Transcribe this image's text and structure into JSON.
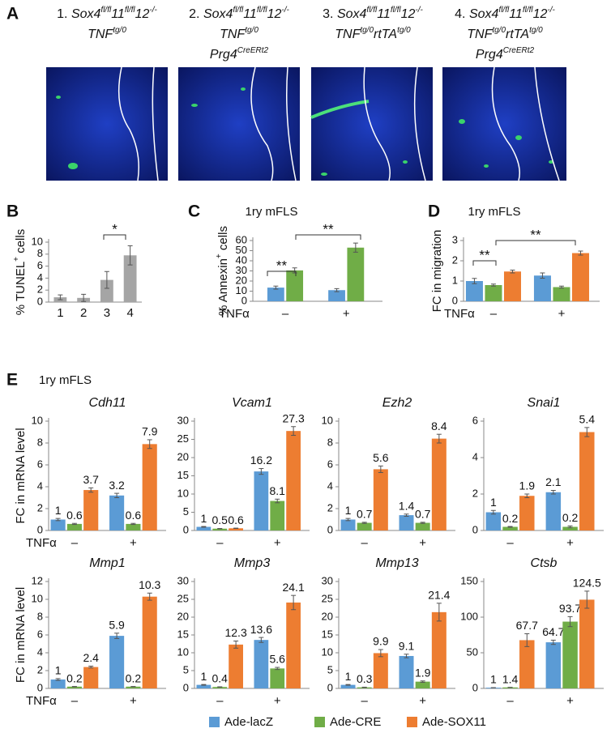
{
  "panel_labels": [
    "A",
    "B",
    "C",
    "D",
    "E"
  ],
  "panel_a": {
    "titles": [
      {
        "number": "1.",
        "lines": [
          [
            [
              "Sox4",
              "fl/fl"
            ],
            [
              "11",
              "fl/fl"
            ],
            [
              "12",
              "-/-"
            ]
          ],
          [
            [
              "TNF",
              "tg/0"
            ]
          ]
        ]
      },
      {
        "number": "2.",
        "lines": [
          [
            [
              "Sox4",
              "fl/fl"
            ],
            [
              "11",
              "fl/fl"
            ],
            [
              "12",
              "-/-"
            ]
          ],
          [
            [
              "TNF",
              "tg/0"
            ]
          ],
          [
            [
              "Prg4",
              "CreERt2"
            ]
          ]
        ]
      },
      {
        "number": "3.",
        "lines": [
          [
            [
              "Sox4",
              "fl/fl"
            ],
            [
              "11",
              "fl/fl"
            ],
            [
              "12",
              "-/-"
            ]
          ],
          [
            [
              "TNF",
              "tg/0"
            ],
            [
              "rtTA",
              "tg/0"
            ]
          ]
        ]
      },
      {
        "number": "4.",
        "lines": [
          [
            [
              "Sox4",
              "fl/fl"
            ],
            [
              "11",
              "fl/fl"
            ],
            [
              "12",
              "-/-"
            ]
          ],
          [
            [
              "TNF",
              "tg/0"
            ],
            [
              "rtTA",
              "tg/0"
            ]
          ],
          [
            [
              "Prg4",
              "CreERt2"
            ]
          ]
        ]
      }
    ]
  },
  "panel_e_subtitle": "1ry mFLS",
  "legend": [
    {
      "name": "Ade-lacZ",
      "color": "#5b9bd5"
    },
    {
      "name": "Ade-CRE",
      "color": "#70ad47"
    },
    {
      "name": "Ade-SOX11",
      "color": "#ed7d31"
    }
  ],
  "chart_data": [
    {
      "type": "bar",
      "y_label": [
        {
          "text": "% TUNEL"
        },
        {
          "text": "+",
          "sup": true
        },
        {
          "text": " cells"
        }
      ],
      "categories": [
        "1",
        "2",
        "3",
        "4"
      ],
      "values": [
        0.8,
        0.7,
        3.7,
        7.8
      ],
      "errors": [
        0.4,
        0.6,
        1.4,
        1.6
      ],
      "color": "#a5a5a5",
      "ylim": [
        0,
        10
      ],
      "yticks": [
        0,
        2,
        4,
        6,
        8,
        10
      ],
      "annotations": [
        {
          "text": "*"
        }
      ]
    },
    {
      "type": "bar",
      "title": "1ry mFLS",
      "y_label": [
        {
          "text": "% Annexin"
        },
        {
          "text": "+",
          "sup": true
        },
        {
          "text": " cells"
        }
      ],
      "x_label": "TNFα",
      "categories": [
        "–",
        "+"
      ],
      "series": [
        {
          "color": "#5b9bd5",
          "values": [
            13.5,
            11
          ],
          "errors": [
            1.5,
            1.5
          ]
        },
        {
          "color": "#70ad47",
          "values": [
            30.5,
            53
          ],
          "errors": [
            2.5,
            4.5
          ]
        }
      ],
      "ylim": [
        0,
        60
      ],
      "yticks": [
        0,
        10,
        20,
        30,
        40,
        50,
        60
      ],
      "annotations": [
        {
          "text": "**"
        },
        {
          "text": "**"
        }
      ]
    },
    {
      "type": "bar",
      "title": "1ry mFLS",
      "y_label": "FC in migration",
      "x_label": "TNFα",
      "categories": [
        "–",
        "+"
      ],
      "series": [
        {
          "color": "#5b9bd5",
          "values": [
            1.0,
            1.27
          ],
          "errors": [
            0.13,
            0.13
          ]
        },
        {
          "color": "#70ad47",
          "values": [
            0.8,
            0.7
          ],
          "errors": [
            0.05,
            0.05
          ]
        },
        {
          "color": "#ed7d31",
          "values": [
            1.47,
            2.38
          ],
          "errors": [
            0.07,
            0.1
          ]
        }
      ],
      "ylim": [
        0,
        3
      ],
      "yticks": [
        0,
        1,
        2,
        3
      ],
      "annotations": [
        {
          "text": "**"
        },
        {
          "text": "**"
        }
      ]
    },
    {
      "type": "bar",
      "title": "Cdh11",
      "y_label": "FC in mRNA level",
      "x_label": "TNFα",
      "data_labels": true,
      "categories": [
        "–",
        "+"
      ],
      "series": [
        {
          "color": "#5b9bd5",
          "values": [
            1,
            3.2
          ],
          "errors": [
            0.1,
            0.2
          ]
        },
        {
          "color": "#70ad47",
          "values": [
            0.6,
            0.6
          ],
          "errors": [
            0.05,
            0.05
          ]
        },
        {
          "color": "#ed7d31",
          "values": [
            3.7,
            7.9
          ],
          "errors": [
            0.2,
            0.4
          ]
        }
      ],
      "ylim": [
        0,
        10
      ],
      "yticks": [
        0,
        2,
        4,
        6,
        8,
        10
      ]
    },
    {
      "type": "bar",
      "title": "Vcam1",
      "data_labels": true,
      "categories": [
        "–",
        "+"
      ],
      "series": [
        {
          "color": "#5b9bd5",
          "values": [
            1,
            16.2
          ],
          "errors": [
            0.1,
            0.8
          ]
        },
        {
          "color": "#70ad47",
          "values": [
            0.5,
            8.1
          ],
          "errors": [
            0.05,
            0.5
          ]
        },
        {
          "color": "#ed7d31",
          "values": [
            0.6,
            27.3
          ],
          "errors": [
            0.05,
            1.2
          ]
        }
      ],
      "ylim": [
        0,
        30
      ],
      "yticks": [
        0,
        5,
        10,
        15,
        20,
        25,
        30
      ]
    },
    {
      "type": "bar",
      "title": "Ezh2",
      "data_labels": true,
      "categories": [
        "–",
        "+"
      ],
      "series": [
        {
          "color": "#5b9bd5",
          "values": [
            1,
            1.4
          ],
          "errors": [
            0.1,
            0.1
          ]
        },
        {
          "color": "#70ad47",
          "values": [
            0.7,
            0.7
          ],
          "errors": [
            0.05,
            0.05
          ]
        },
        {
          "color": "#ed7d31",
          "values": [
            5.6,
            8.4
          ],
          "errors": [
            0.3,
            0.4
          ]
        }
      ],
      "ylim": [
        0,
        10
      ],
      "yticks": [
        0,
        2,
        4,
        6,
        8,
        10
      ]
    },
    {
      "type": "bar",
      "title": "Snai1",
      "data_labels": true,
      "categories": [
        "–",
        "+"
      ],
      "series": [
        {
          "color": "#5b9bd5",
          "values": [
            1,
            2.1
          ],
          "errors": [
            0.1,
            0.1
          ]
        },
        {
          "color": "#70ad47",
          "values": [
            0.2,
            0.2
          ],
          "errors": [
            0.02,
            0.05
          ]
        },
        {
          "color": "#ed7d31",
          "values": [
            1.9,
            5.4
          ],
          "errors": [
            0.1,
            0.25
          ]
        }
      ],
      "ylim": [
        0,
        6
      ],
      "yticks": [
        0,
        2,
        4,
        6
      ]
    },
    {
      "type": "bar",
      "title": "Mmp1",
      "y_label": "FC in mRNA level",
      "x_label": "TNFα",
      "data_labels": true,
      "categories": [
        "–",
        "+"
      ],
      "series": [
        {
          "color": "#5b9bd5",
          "values": [
            1,
            5.9
          ],
          "errors": [
            0.1,
            0.3
          ]
        },
        {
          "color": "#70ad47",
          "values": [
            0.2,
            0.2
          ],
          "errors": [
            0.02,
            0.02
          ]
        },
        {
          "color": "#ed7d31",
          "values": [
            2.4,
            10.3
          ],
          "errors": [
            0.1,
            0.4
          ]
        }
      ],
      "ylim": [
        0,
        12
      ],
      "yticks": [
        0,
        2,
        4,
        6,
        8,
        10,
        12
      ]
    },
    {
      "type": "bar",
      "title": "Mmp3",
      "data_labels": true,
      "categories": [
        "–",
        "+"
      ],
      "series": [
        {
          "color": "#5b9bd5",
          "values": [
            1,
            13.6
          ],
          "errors": [
            0.1,
            0.7
          ]
        },
        {
          "color": "#70ad47",
          "values": [
            0.4,
            5.6
          ],
          "errors": [
            0.05,
            0.3
          ]
        },
        {
          "color": "#ed7d31",
          "values": [
            12.3,
            24.1
          ],
          "errors": [
            1,
            2
          ]
        }
      ],
      "ylim": [
        0,
        30
      ],
      "yticks": [
        0,
        5,
        10,
        15,
        20,
        25,
        30
      ]
    },
    {
      "type": "bar",
      "title": "Mmp13",
      "data_labels": true,
      "categories": [
        "–",
        "+"
      ],
      "series": [
        {
          "color": "#5b9bd5",
          "values": [
            1,
            9.1
          ],
          "errors": [
            0.1,
            0.5
          ]
        },
        {
          "color": "#70ad47",
          "values": [
            0.3,
            1.9
          ],
          "errors": [
            0.05,
            0.2
          ]
        },
        {
          "color": "#ed7d31",
          "values": [
            9.9,
            21.4
          ],
          "errors": [
            1,
            2.5
          ]
        }
      ],
      "ylim": [
        0,
        30
      ],
      "yticks": [
        0,
        5,
        10,
        15,
        20,
        25,
        30
      ]
    },
    {
      "type": "bar",
      "title": "Ctsb",
      "data_labels": true,
      "categories": [
        "–",
        "+"
      ],
      "series": [
        {
          "color": "#5b9bd5",
          "values": [
            1,
            64.7
          ],
          "errors": [
            0.1,
            3
          ]
        },
        {
          "color": "#70ad47",
          "values": [
            1.4,
            93.7
          ],
          "errors": [
            0.1,
            7
          ]
        },
        {
          "color": "#ed7d31",
          "values": [
            67.7,
            124.5
          ],
          "errors": [
            9,
            12
          ]
        }
      ],
      "ylim": [
        0,
        150
      ],
      "yticks": [
        0,
        50,
        100,
        150
      ]
    }
  ]
}
